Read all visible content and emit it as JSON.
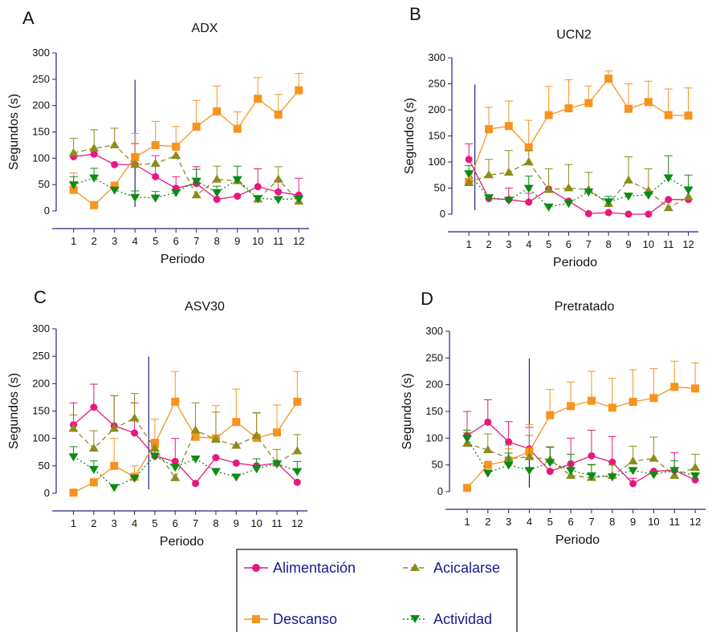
{
  "figure": {
    "colors": {
      "Alimentación": "#e8177e",
      "Descanso": "#f7931e",
      "Acicalarse": "#8c8c1c",
      "Actividad": "#0e8a16",
      "axis": "#23237a",
      "marker_line": "#23237a",
      "text": "#111111"
    },
    "legend": [
      {
        "name": "Alimentación",
        "marker": "circle",
        "line": "solid"
      },
      {
        "name": "Acicalarse",
        "marker": "triangle-up",
        "line": "dashed"
      },
      {
        "name": "Descanso",
        "marker": "square",
        "line": "solid"
      },
      {
        "name": "Actividad",
        "marker": "triangle-down",
        "line": "dotted"
      }
    ]
  },
  "chart_data": [
    {
      "panel": "A",
      "type": "line",
      "title": "ADX",
      "xlabel": "Periodo",
      "ylabel": "Segundos (s)",
      "x": [
        1,
        2,
        3,
        4,
        5,
        6,
        7,
        8,
        9,
        10,
        11,
        12
      ],
      "xticks": [
        "1",
        "2",
        "3",
        "4",
        "5",
        "6",
        "7",
        "8",
        "9",
        "10",
        "11",
        "12"
      ],
      "ylim": [
        0,
        300
      ],
      "yticks": [
        "0",
        "50",
        "100",
        "150",
        "200",
        "250",
        "300"
      ],
      "vline_at": 4,
      "series": [
        {
          "name": "Alimentación",
          "values": [
            103,
            108,
            88,
            88,
            65,
            43,
            52,
            22,
            28,
            46,
            36,
            30
          ],
          "errors": [
            0,
            0,
            0,
            40,
            40,
            22,
            32,
            0,
            0,
            34,
            22,
            32
          ]
        },
        {
          "name": "Descanso",
          "values": [
            40,
            11,
            48,
            102,
            125,
            122,
            160,
            189,
            156,
            213,
            183,
            229
          ],
          "errors": [
            32,
            0,
            0,
            45,
            45,
            38,
            50,
            48,
            32,
            40,
            38,
            32
          ]
        },
        {
          "name": "Acicalarse",
          "values": [
            110,
            119,
            125,
            88,
            90,
            105,
            30,
            60,
            57,
            22,
            60,
            18
          ],
          "errors": [
            28,
            35,
            32,
            0,
            0,
            0,
            0,
            25,
            0,
            0,
            24,
            0
          ]
        },
        {
          "name": "Actividad",
          "values": [
            50,
            63,
            40,
            26,
            25,
            35,
            57,
            35,
            60,
            24,
            22,
            23
          ],
          "errors": [
            15,
            18,
            0,
            12,
            12,
            0,
            22,
            12,
            25,
            0,
            0,
            0
          ]
        }
      ]
    },
    {
      "panel": "B",
      "type": "line",
      "title": "UCN2",
      "xlabel": "Periodo",
      "ylabel": "Segundos (s)",
      "x": [
        1,
        2,
        3,
        4,
        5,
        6,
        7,
        8,
        9,
        10,
        11,
        12
      ],
      "xticks": [
        "1",
        "2",
        "3",
        "4",
        "5",
        "6",
        "7",
        "8",
        "9",
        "10",
        "11",
        "12"
      ],
      "ylim": [
        0,
        300
      ],
      "yticks": [
        "0",
        "50",
        "100",
        "150",
        "200",
        "250",
        "300"
      ],
      "vline_at": 1.3,
      "series": [
        {
          "name": "Alimentación",
          "values": [
            105,
            30,
            28,
            23,
            48,
            25,
            1,
            3,
            0,
            0,
            28,
            28
          ],
          "errors": [
            30,
            0,
            22,
            17,
            0,
            0,
            0,
            0,
            0,
            0,
            0,
            0
          ]
        },
        {
          "name": "Descanso",
          "values": [
            62,
            163,
            169,
            128,
            190,
            203,
            213,
            260,
            202,
            215,
            190,
            189
          ],
          "errors": [
            0,
            42,
            48,
            52,
            55,
            55,
            33,
            15,
            48,
            40,
            50,
            53
          ]
        },
        {
          "name": "Acicalarse",
          "values": [
            60,
            75,
            80,
            100,
            47,
            50,
            47,
            20,
            65,
            45,
            12,
            33
          ],
          "errors": [
            0,
            30,
            42,
            22,
            40,
            45,
            33,
            0,
            45,
            42,
            0,
            0
          ]
        },
        {
          "name": "Actividad",
          "values": [
            78,
            32,
            27,
            50,
            14,
            21,
            43,
            24,
            35,
            37,
            70,
            47
          ],
          "errors": [
            15,
            0,
            0,
            23,
            0,
            0,
            0,
            10,
            0,
            0,
            42,
            28
          ]
        }
      ]
    },
    {
      "panel": "C",
      "type": "line",
      "title": "ASV30",
      "xlabel": "Periodo",
      "ylabel": "Segundos (s)",
      "x": [
        1,
        2,
        3,
        4,
        5,
        6,
        7,
        8,
        9,
        10,
        11,
        12
      ],
      "xticks": [
        "1",
        "2",
        "3",
        "4",
        "5",
        "6",
        "7",
        "8",
        "9",
        "10",
        "11",
        "12"
      ],
      "ylim": [
        0,
        300
      ],
      "yticks": [
        "0",
        "50",
        "100",
        "150",
        "200",
        "250",
        "300"
      ],
      "vline_at": 4.7,
      "series": [
        {
          "name": "Alimentación",
          "values": [
            125,
            157,
            123,
            110,
            68,
            58,
            18,
            65,
            55,
            50,
            55,
            20
          ],
          "errors": [
            40,
            42,
            55,
            55,
            30,
            42,
            0,
            0,
            0,
            0,
            0,
            0
          ]
        },
        {
          "name": "Descanso",
          "values": [
            1,
            20,
            50,
            30,
            90,
            167,
            103,
            100,
            130,
            101,
            111,
            167
          ],
          "errors": [
            0,
            0,
            50,
            20,
            45,
            55,
            0,
            60,
            60,
            45,
            50,
            55
          ]
        },
        {
          "name": "Acicalarse",
          "values": [
            118,
            82,
            118,
            137,
            82,
            28,
            115,
            98,
            87,
            105,
            55,
            77
          ],
          "errors": [
            25,
            32,
            60,
            45,
            0,
            0,
            50,
            50,
            0,
            42,
            25,
            30
          ]
        },
        {
          "name": "Actividad",
          "values": [
            67,
            44,
            11,
            28,
            68,
            48,
            63,
            40,
            30,
            45,
            54,
            40
          ],
          "errors": [
            18,
            15,
            0,
            0,
            0,
            0,
            0,
            0,
            0,
            18,
            0,
            18
          ]
        }
      ]
    },
    {
      "panel": "D",
      "type": "line",
      "title": "Pretratado",
      "xlabel": "Periodo",
      "ylabel": "Segundos (s)",
      "x": [
        1,
        2,
        3,
        4,
        5,
        6,
        7,
        8,
        9,
        10,
        11,
        12
      ],
      "xticks": [
        "1",
        "2",
        "3",
        "4",
        "5",
        "6",
        "7",
        "8",
        "9",
        "10",
        "11",
        "12"
      ],
      "ylim": [
        0,
        300
      ],
      "yticks": [
        "0",
        "50",
        "100",
        "150",
        "200",
        "250",
        "300"
      ],
      "vline_at": 4,
      "series": [
        {
          "name": "Alimentación",
          "values": [
            105,
            130,
            93,
            80,
            38,
            52,
            67,
            55,
            15,
            38,
            40,
            22
          ],
          "errors": [
            45,
            42,
            38,
            40,
            0,
            48,
            48,
            48,
            10,
            0,
            33,
            0
          ]
        },
        {
          "name": "Descanso",
          "values": [
            7,
            50,
            58,
            75,
            143,
            160,
            170,
            157,
            168,
            175,
            196,
            193
          ],
          "errors": [
            0,
            0,
            22,
            50,
            48,
            45,
            55,
            55,
            60,
            55,
            48,
            48
          ]
        },
        {
          "name": "Acicalarse",
          "values": [
            90,
            78,
            62,
            65,
            60,
            30,
            26,
            30,
            57,
            62,
            30,
            45
          ],
          "errors": [
            20,
            30,
            25,
            40,
            24,
            0,
            25,
            20,
            28,
            40,
            0,
            25
          ]
        },
        {
          "name": "Actividad",
          "values": [
            100,
            35,
            50,
            40,
            55,
            40,
            30,
            28,
            40,
            32,
            40,
            30
          ],
          "errors": [
            15,
            0,
            22,
            0,
            28,
            30,
            20,
            0,
            0,
            0,
            18,
            0
          ]
        }
      ]
    }
  ]
}
